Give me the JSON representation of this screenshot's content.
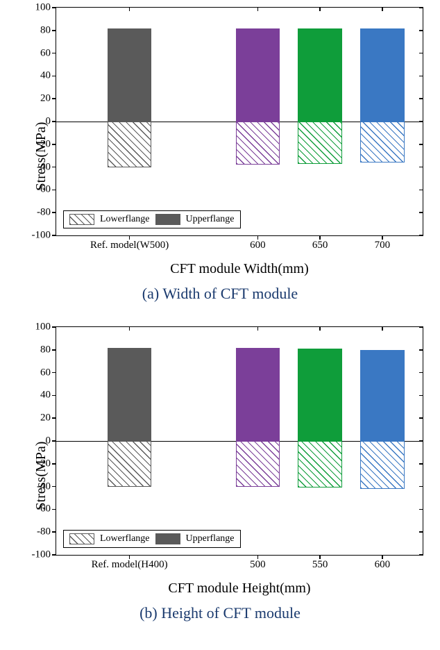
{
  "chart_a": {
    "type": "bar",
    "ylabel": "Stress(MPa)",
    "xlabel": "CFT module Width(mm)",
    "caption": "(a) Width of CFT module",
    "ylim": [
      -100,
      100
    ],
    "ytick_step": 20,
    "yticks": [
      -100,
      -80,
      -60,
      -40,
      -20,
      0,
      20,
      40,
      60,
      80,
      100
    ],
    "categories": [
      "Ref. model(W500)",
      "600",
      "650",
      "700"
    ],
    "x_positions_pct": [
      20,
      55,
      72,
      89
    ],
    "bar_width_pct": 12,
    "bars_upper": [
      82,
      82,
      82,
      82
    ],
    "bars_lower": [
      -40,
      -38,
      -37,
      -36
    ],
    "upper_colors": [
      "#5a5a5a",
      "#7b3f99",
      "#0f9d3a",
      "#3a78c3"
    ],
    "lower_outline_colors": [
      "#5a5a5a",
      "#7b3f99",
      "#0f9d3a",
      "#3a78c3"
    ],
    "background_color": "#ffffff",
    "border_color": "#000000",
    "ylabel_fontsize": 20,
    "xlabel_fontsize": 20,
    "tick_fontsize": 15,
    "caption_fontsize": 22,
    "caption_color": "#1a3a6e",
    "legend": {
      "position": "bottom-left",
      "items": [
        {
          "label": "Lowerflange",
          "style": "hatched",
          "outline": "#5a5a5a"
        },
        {
          "label": "Upperflange",
          "style": "solid",
          "fill": "#5a5a5a"
        }
      ]
    }
  },
  "chart_b": {
    "type": "bar",
    "ylabel": "Stress(MPa)",
    "xlabel": "CFT module Height(mm)",
    "caption": "(b) Height of CFT module",
    "ylim": [
      -100,
      100
    ],
    "ytick_step": 20,
    "yticks": [
      -100,
      -80,
      -60,
      -40,
      -20,
      0,
      20,
      40,
      60,
      80,
      100
    ],
    "categories": [
      "Ref. model(H400)",
      "500",
      "550",
      "600"
    ],
    "x_positions_pct": [
      20,
      55,
      72,
      89
    ],
    "bar_width_pct": 12,
    "bars_upper": [
      82,
      82,
      81,
      80
    ],
    "bars_lower": [
      -40,
      -40,
      -41,
      -42
    ],
    "upper_colors": [
      "#5a5a5a",
      "#7b3f99",
      "#0f9d3a",
      "#3a78c3"
    ],
    "lower_outline_colors": [
      "#5a5a5a",
      "#7b3f99",
      "#0f9d3a",
      "#3a78c3"
    ],
    "background_color": "#ffffff",
    "border_color": "#000000",
    "ylabel_fontsize": 20,
    "xlabel_fontsize": 20,
    "tick_fontsize": 15,
    "caption_fontsize": 22,
    "caption_color": "#1a3a6e",
    "legend": {
      "position": "bottom-left",
      "items": [
        {
          "label": "Lowerflange",
          "style": "hatched",
          "outline": "#5a5a5a"
        },
        {
          "label": "Upperflange",
          "style": "solid",
          "fill": "#5a5a5a"
        }
      ]
    }
  }
}
